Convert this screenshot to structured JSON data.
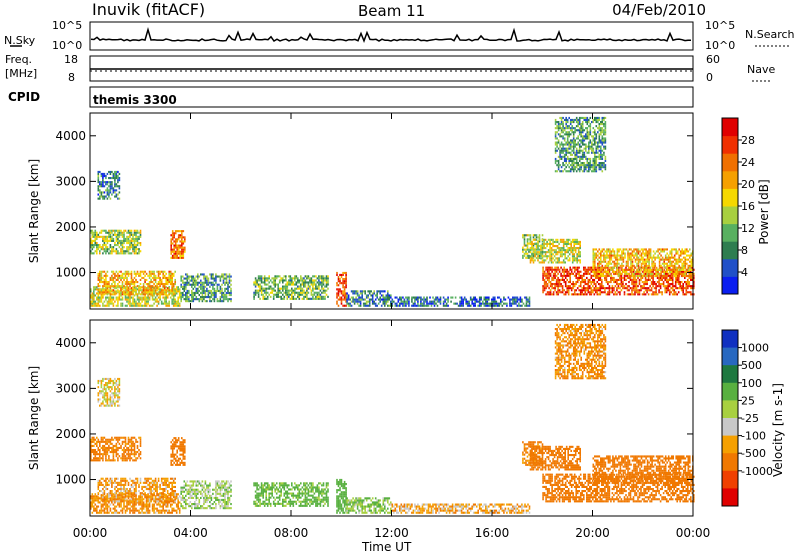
{
  "header": {
    "station": "Inuvik (fitACF)",
    "beam": "Beam 11",
    "date": "04/Feb/2010"
  },
  "noise_panel": {
    "left_label": "N.Sky",
    "right_label": "N.Search",
    "left_ticks": [
      "10^5",
      "10^0"
    ],
    "right_ticks": [
      "10^5",
      "10^0"
    ]
  },
  "freq_panel": {
    "left_label": "Freq.",
    "unit": "[MHz]",
    "right_label": "Nave",
    "left_ticks": [
      "18",
      "8"
    ],
    "right_ticks": [
      "60",
      "0"
    ]
  },
  "cpid_panel": {
    "label": "CPID",
    "value": "themis 3300"
  },
  "colors": {
    "power_scale": [
      "#0a1ef0",
      "#2050c8",
      "#2e7d50",
      "#58b060",
      "#a8d040",
      "#f5d800",
      "#f5a000",
      "#f07000",
      "#f03000",
      "#e00000"
    ],
    "velocity_scale": [
      "#1030c0",
      "#2868c0",
      "#1e7840",
      "#58b040",
      "#a8d040",
      "#c8c8c8",
      "#f5a000",
      "#f07800",
      "#f04000",
      "#e00000"
    ]
  },
  "chart_data": [
    {
      "type": "heatmap",
      "name": "power",
      "ylabel": "Slant Range [km]",
      "xlabel": "",
      "x_ticks": [
        "00:00",
        "04:00",
        "08:00",
        "12:00",
        "16:00",
        "20:00",
        "00:00"
      ],
      "xlim_hours": [
        0,
        24
      ],
      "ylim": [
        200,
        4500
      ],
      "y_ticks": [
        1000,
        2000,
        3000,
        4000
      ],
      "colorbar_label": "Power [dB]",
      "colorbar_ticks": [
        4,
        8,
        12,
        16,
        20,
        24,
        28
      ],
      "colorbar_range": [
        0,
        32
      ],
      "regions": [
        {
          "t": [
            0.0,
            3.6
          ],
          "r": [
            250,
            700
          ],
          "value": 16
        },
        {
          "t": [
            0.3,
            3.4
          ],
          "r": [
            500,
            1000
          ],
          "value": 20
        },
        {
          "t": [
            0.0,
            2.0
          ],
          "r": [
            1400,
            1900
          ],
          "value": 14
        },
        {
          "t": [
            3.2,
            3.8
          ],
          "r": [
            1300,
            1900
          ],
          "value": 24
        },
        {
          "t": [
            0.3,
            1.2
          ],
          "r": [
            2600,
            3200
          ],
          "value": 8
        },
        {
          "t": [
            3.6,
            5.6
          ],
          "r": [
            350,
            950
          ],
          "value": 10
        },
        {
          "t": [
            6.5,
            9.5
          ],
          "r": [
            400,
            900
          ],
          "value": 12
        },
        {
          "t": [
            9.8,
            10.2
          ],
          "r": [
            250,
            1000
          ],
          "value": 26
        },
        {
          "t": [
            10.2,
            12.0
          ],
          "r": [
            250,
            600
          ],
          "value": 8
        },
        {
          "t": [
            12.0,
            17.5
          ],
          "r": [
            250,
            450
          ],
          "value": 6
        },
        {
          "t": [
            17.2,
            18.0
          ],
          "r": [
            1300,
            1800
          ],
          "value": 14
        },
        {
          "t": [
            17.5,
            19.5
          ],
          "r": [
            1200,
            1700
          ],
          "value": 16
        },
        {
          "t": [
            18.0,
            24.0
          ],
          "r": [
            500,
            1100
          ],
          "value": 26
        },
        {
          "t": [
            20.0,
            24.0
          ],
          "r": [
            900,
            1500
          ],
          "value": 20
        },
        {
          "t": [
            18.5,
            20.5
          ],
          "r": [
            3200,
            4400
          ],
          "value": 10
        }
      ]
    },
    {
      "type": "heatmap",
      "name": "velocity",
      "ylabel": "Slant Range [km]",
      "xlabel": "Time UT",
      "x_ticks": [
        "00:00",
        "04:00",
        "08:00",
        "12:00",
        "16:00",
        "20:00",
        "00:00"
      ],
      "xlim_hours": [
        0,
        24
      ],
      "ylim": [
        200,
        4500
      ],
      "y_ticks": [
        1000,
        2000,
        3000,
        4000
      ],
      "colorbar_label": "Velocity [m s-1]",
      "colorbar_ticks": [
        "1000",
        "500",
        "100",
        "25",
        "-25",
        "-100",
        "-500",
        "-1000"
      ],
      "regions": [
        {
          "t": [
            0.0,
            3.6
          ],
          "r": [
            250,
            700
          ],
          "value": -100
        },
        {
          "t": [
            0.3,
            3.4
          ],
          "r": [
            500,
            1000
          ],
          "value": -80
        },
        {
          "t": [
            0.0,
            2.0
          ],
          "r": [
            1400,
            1900
          ],
          "value": -150
        },
        {
          "t": [
            3.2,
            3.8
          ],
          "r": [
            1300,
            1900
          ],
          "value": -200
        },
        {
          "t": [
            0.3,
            1.2
          ],
          "r": [
            2600,
            3200
          ],
          "value": 0
        },
        {
          "t": [
            3.6,
            5.6
          ],
          "r": [
            350,
            950
          ],
          "value": 60
        },
        {
          "t": [
            6.5,
            9.5
          ],
          "r": [
            400,
            900
          ],
          "value": 150
        },
        {
          "t": [
            9.8,
            10.2
          ],
          "r": [
            250,
            1000
          ],
          "value": 200
        },
        {
          "t": [
            10.2,
            12.0
          ],
          "r": [
            250,
            600
          ],
          "value": 80
        },
        {
          "t": [
            12.0,
            17.5
          ],
          "r": [
            250,
            450
          ],
          "value": -60
        },
        {
          "t": [
            17.2,
            18.0
          ],
          "r": [
            1300,
            1800
          ],
          "value": -150
        },
        {
          "t": [
            17.5,
            19.5
          ],
          "r": [
            1200,
            1700
          ],
          "value": -200
        },
        {
          "t": [
            18.0,
            24.0
          ],
          "r": [
            500,
            1100
          ],
          "value": -300
        },
        {
          "t": [
            20.0,
            24.0
          ],
          "r": [
            900,
            1500
          ],
          "value": -250
        },
        {
          "t": [
            18.5,
            20.5
          ],
          "r": [
            3200,
            4400
          ],
          "value": -100
        }
      ]
    }
  ]
}
